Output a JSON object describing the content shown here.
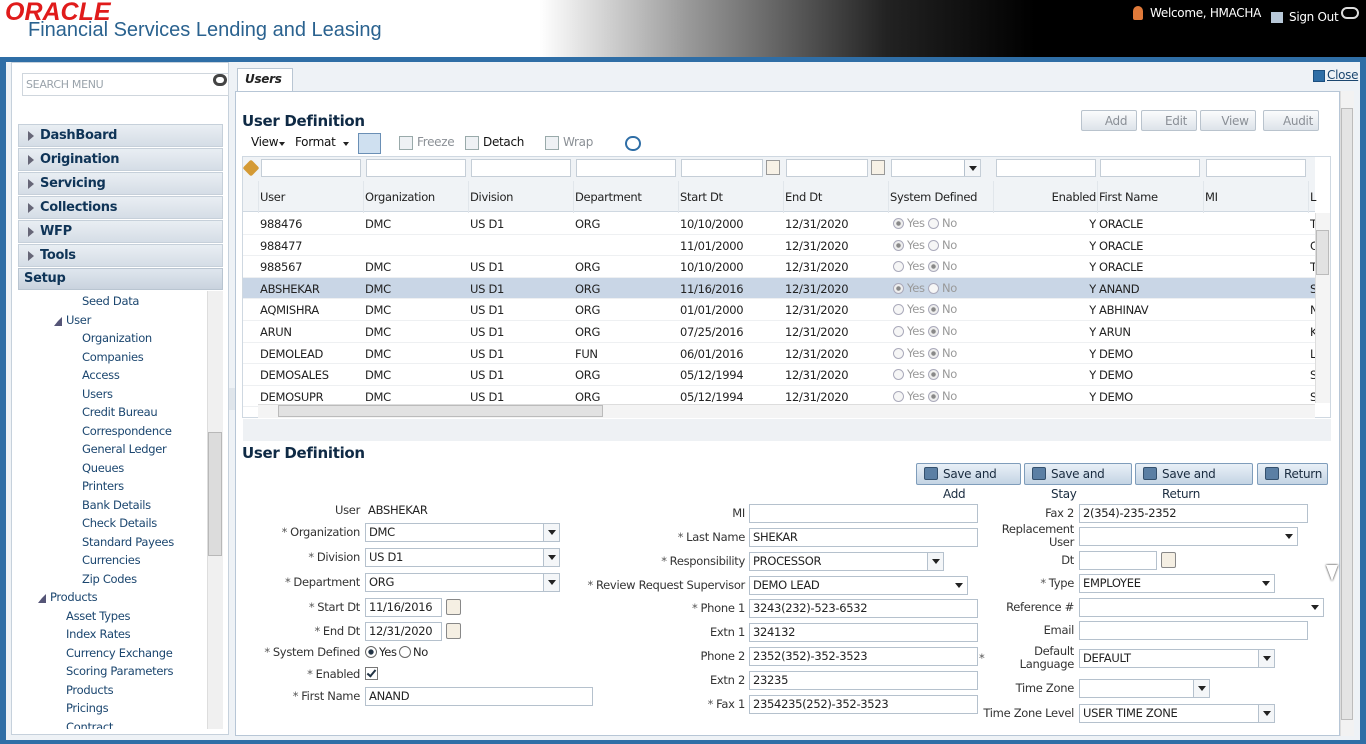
{
  "header": {
    "brand": "ORACLE",
    "product": "Financial Services Lending and Leasing",
    "welcome": "Welcome, HMACHA",
    "sign_out": "Sign Out"
  },
  "sidebar": {
    "search_placeholder": "SEARCH MENU",
    "menu": [
      "DashBoard",
      "Origination",
      "Servicing",
      "Collections",
      "WFP",
      "Tools"
    ],
    "setup": "Setup",
    "tree": [
      "Seed Data",
      "User",
      "Organization",
      "Companies",
      "Access",
      "Users",
      "Credit Bureau",
      "Correspondence",
      "General Ledger",
      "Queues",
      "Printers",
      "Bank Details",
      "Check Details",
      "Standard Payees",
      "Currencies",
      "Zip Codes",
      "Products",
      "Asset Types",
      "Index Rates",
      "Currency Exchange",
      "Scoring Parameters",
      "Products",
      "Pricings",
      "Contract"
    ]
  },
  "tab": {
    "label": "Users",
    "close": "Close"
  },
  "required_mark": "*",
  "radio_options": [
    "Yes",
    "No"
  ],
  "grid": {
    "title": "User Definition",
    "actions": [
      "Add",
      "Edit",
      "View",
      "Audit"
    ],
    "toolbar": [
      "View",
      "Format",
      "Freeze",
      "Detach",
      "Wrap"
    ],
    "columns": [
      "User",
      "Organization",
      "Division",
      "Department",
      "Start Dt",
      "End Dt",
      "System Defined",
      "Enabled",
      "First Name",
      "MI",
      "L"
    ],
    "selected_row": 3,
    "rows": [
      [
        "988476",
        "DMC",
        "US D1",
        "ORG",
        "10/10/2000",
        "12/31/2020",
        "Yes",
        "Y",
        "ORACLE",
        null,
        "T"
      ],
      [
        "988477",
        null,
        null,
        null,
        "11/01/2000",
        "12/31/2020",
        "Yes",
        "Y",
        "ORACLE",
        null,
        "C"
      ],
      [
        "988567",
        "DMC",
        "US D1",
        "ORG",
        "10/10/2000",
        "12/31/2020",
        "No",
        "Y",
        "ORACLE",
        null,
        "T"
      ],
      [
        "ABSHEKAR",
        "DMC",
        "US D1",
        "ORG",
        "11/16/2016",
        "12/31/2020",
        "Yes",
        "Y",
        "ANAND",
        null,
        "S"
      ],
      [
        "AQMISHRA",
        "DMC",
        "US D1",
        "ORG",
        "01/01/2000",
        "12/31/2020",
        "No",
        "Y",
        "ABHINAV",
        null,
        "N"
      ],
      [
        "ARUN",
        "DMC",
        "US D1",
        "ORG",
        "07/25/2016",
        "12/31/2020",
        "No",
        "Y",
        "ARUN",
        null,
        "K"
      ],
      [
        "DEMOLEAD",
        "DMC",
        "US D1",
        "FUN",
        "06/01/2016",
        "12/31/2020",
        "No",
        "Y",
        "DEMO",
        null,
        "L"
      ],
      [
        "DEMOSALES",
        "DMC",
        "US D1",
        "ORG",
        "05/12/1994",
        "12/31/2020",
        "No",
        "Y",
        "DEMO",
        null,
        "S"
      ],
      [
        "DEMOSUPR",
        "DMC",
        "US D1",
        "ORG",
        "05/12/1994",
        "12/31/2020",
        "No",
        "Y",
        "DEMO",
        null,
        "S"
      ]
    ]
  },
  "form": {
    "title": "User Definition",
    "buttons": [
      "Save and Add",
      "Save and Stay",
      "Save and Return",
      "Return"
    ],
    "columns": [
      [
        {
          "label": "User",
          "value": "ABSHEKAR",
          "control": "static"
        },
        {
          "label": "Organization",
          "value": "DMC",
          "control": "select",
          "required": true
        },
        {
          "label": "Division",
          "value": "US D1",
          "control": "select",
          "required": true
        },
        {
          "label": "Department",
          "value": "ORG",
          "control": "select",
          "required": true
        },
        {
          "label": "Start Dt",
          "value": "11/16/2016",
          "control": "date",
          "required": true
        },
        {
          "label": "End Dt",
          "value": "12/31/2020",
          "control": "date",
          "required": true
        },
        {
          "label": "System Defined",
          "value": "Yes",
          "control": "radio",
          "required": true
        },
        {
          "label": "Enabled",
          "checked": true,
          "control": "checkbox",
          "required": true
        },
        {
          "label": "First Name",
          "value": "ANAND",
          "control": "text",
          "required": true
        }
      ],
      [
        {
          "label": "MI",
          "control": "text"
        },
        {
          "label": "Last Name",
          "value": "SHEKAR",
          "control": "text",
          "required": true
        },
        {
          "label": "Responsibility",
          "value": "PROCESSOR",
          "control": "select",
          "required": true
        },
        {
          "label": "Review Request Supervisor",
          "value": "DEMO  LEAD",
          "control": "select",
          "required": true
        },
        {
          "label": "Phone 1",
          "value": "3243(232)-523-6532",
          "control": "text",
          "required": true
        },
        {
          "label": "Extn 1",
          "value": "324132",
          "control": "text"
        },
        {
          "label": "Phone 2",
          "value": "2352(352)-352-3523",
          "control": "text"
        },
        {
          "label": "Extn 2",
          "value": "23235",
          "control": "text"
        },
        {
          "label": "Fax 1",
          "value": "2354235(252)-352-3523",
          "control": "text",
          "required": true
        }
      ],
      [
        {
          "label": "Fax 2",
          "value": "2(354)-235-2352",
          "control": "text"
        },
        {
          "label": "Replacement User",
          "control": "select"
        },
        {
          "label": "Dt",
          "control": "date"
        },
        {
          "label": "Type",
          "value": "EMPLOYEE",
          "control": "select",
          "required": true
        },
        {
          "label": "Reference #",
          "control": "select"
        },
        {
          "label": "Email",
          "control": "text"
        },
        {
          "label": "Default Language",
          "value": "DEFAULT",
          "control": "select",
          "required": true
        },
        {
          "label": "Time Zone",
          "control": "select"
        },
        {
          "label": "Time Zone Level",
          "value": "USER TIME ZONE",
          "control": "select"
        }
      ]
    ]
  }
}
